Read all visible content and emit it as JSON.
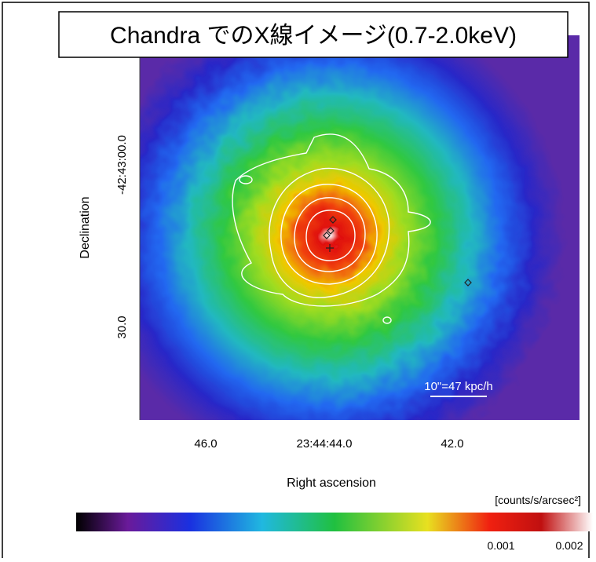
{
  "title": "Chandra でのX線イメージ(0.7-2.0keV)",
  "image": {
    "y_label": "Declination",
    "x_label": "Right ascension",
    "y_ticks": [
      "-42:43:00.0",
      "30.0"
    ],
    "x_ticks": [
      "46.0",
      "23:44:44.0",
      "42.0"
    ],
    "scale_bar": "10\"=47 kpc/h"
  },
  "colorbar": {
    "label": "[counts/s/arcsec²]",
    "ticks": [
      "0.001",
      "0.002"
    ]
  }
}
